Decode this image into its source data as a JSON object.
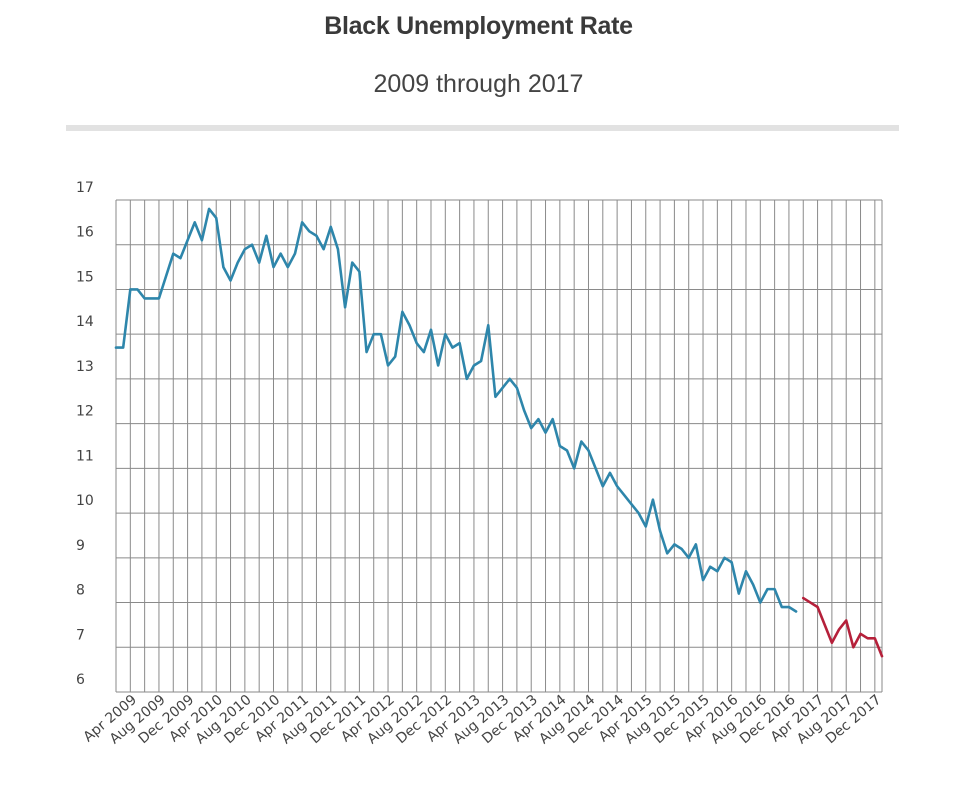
{
  "chart_data": {
    "type": "line",
    "title": "Black Unemployment Rate",
    "subtitle": "2009 through 2017",
    "xlabel": "",
    "ylabel": "",
    "ylim": [
      6,
      17
    ],
    "yticks": [
      "6",
      "7",
      "8",
      "9",
      "10",
      "11",
      "12",
      "13",
      "14",
      "15",
      "16",
      "17"
    ],
    "xtick_labels": [
      "Apr 2009",
      "Aug 2009",
      "Dec 2009",
      "Apr 2010",
      "Aug 2010",
      "Dec 2010",
      "Apr 2011",
      "Aug 2011",
      "Dec 2011",
      "Apr 2012",
      "Aug 2012",
      "Dec 2012",
      "Apr 2013",
      "Aug 2013",
      "Dec 2013",
      "Apr 2014",
      "Aug 2014",
      "Dec 2014",
      "Apr 2015",
      "Aug 2015",
      "Dec 2015",
      "Apr 2016",
      "Aug 2016",
      "Dec 2016",
      "Apr 2017",
      "Aug 2017",
      "Dec 2017"
    ],
    "grid": true,
    "legend": "none",
    "series": [
      {
        "color": "#2e86ab",
        "x": [
          "Jan 2009",
          "Feb 2009",
          "Mar 2009",
          "Apr 2009",
          "May 2009",
          "Jun 2009",
          "Jul 2009",
          "Aug 2009",
          "Sep 2009",
          "Oct 2009",
          "Nov 2009",
          "Dec 2009",
          "Jan 2010",
          "Feb 2010",
          "Mar 2010",
          "Apr 2010",
          "May 2010",
          "Jun 2010",
          "Jul 2010",
          "Aug 2010",
          "Sep 2010",
          "Oct 2010",
          "Nov 2010",
          "Dec 2010",
          "Jan 2011",
          "Feb 2011",
          "Mar 2011",
          "Apr 2011",
          "May 2011",
          "Jun 2011",
          "Jul 2011",
          "Aug 2011",
          "Sep 2011",
          "Oct 2011",
          "Nov 2011",
          "Dec 2011",
          "Jan 2012",
          "Feb 2012",
          "Mar 2012",
          "Apr 2012",
          "May 2012",
          "Jun 2012",
          "Jul 2012",
          "Aug 2012",
          "Sep 2012",
          "Oct 2012",
          "Nov 2012",
          "Dec 2012",
          "Jan 2013",
          "Feb 2013",
          "Mar 2013",
          "Apr 2013",
          "May 2013",
          "Jun 2013",
          "Jul 2013",
          "Aug 2013",
          "Sep 2013",
          "Oct 2013",
          "Nov 2013",
          "Dec 2013",
          "Jan 2014",
          "Feb 2014",
          "Mar 2014",
          "Apr 2014",
          "May 2014",
          "Jun 2014",
          "Jul 2014",
          "Aug 2014",
          "Sep 2014",
          "Oct 2014",
          "Nov 2014",
          "Dec 2014",
          "Jan 2015",
          "Feb 2015",
          "Mar 2015",
          "Apr 2015",
          "May 2015",
          "Jun 2015",
          "Jul 2015",
          "Aug 2015",
          "Sep 2015",
          "Oct 2015",
          "Nov 2015",
          "Dec 2015",
          "Jan 2016",
          "Feb 2016",
          "Mar 2016",
          "Apr 2016",
          "May 2016",
          "Jun 2016",
          "Jul 2016",
          "Aug 2016",
          "Sep 2016",
          "Oct 2016",
          "Nov 2016",
          "Dec 2016"
        ],
        "values": [
          13.7,
          13.7,
          15.0,
          15.0,
          14.8,
          14.8,
          14.8,
          15.3,
          15.8,
          15.7,
          16.1,
          16.5,
          16.1,
          16.8,
          16.6,
          15.5,
          15.2,
          15.6,
          15.9,
          16.0,
          15.6,
          16.2,
          15.5,
          15.8,
          15.5,
          15.8,
          16.5,
          16.3,
          16.2,
          15.9,
          16.4,
          15.9,
          14.6,
          15.6,
          15.4,
          13.6,
          14.0,
          14.0,
          13.3,
          13.5,
          14.5,
          14.2,
          13.8,
          13.6,
          14.1,
          13.3,
          14.0,
          13.7,
          13.8,
          13.0,
          13.3,
          13.4,
          14.2,
          12.6,
          12.8,
          13.0,
          12.8,
          12.3,
          11.9,
          12.1,
          11.8,
          12.1,
          11.5,
          11.4,
          11.0,
          11.6,
          11.4,
          11.0,
          10.6,
          10.9,
          10.6,
          10.4,
          10.2,
          10.0,
          9.7,
          10.3,
          9.6,
          9.1,
          9.3,
          9.2,
          9.0,
          9.3,
          8.5,
          8.8,
          8.7,
          9.0,
          8.9,
          8.2,
          8.7,
          8.4,
          8.0,
          8.3,
          8.3,
          7.9,
          7.9,
          7.8
        ]
      },
      {
        "color": "#b5203a",
        "x": [
          "Jan 2017",
          "Feb 2017",
          "Mar 2017",
          "Apr 2017",
          "May 2017",
          "Jun 2017",
          "Jul 2017",
          "Aug 2017",
          "Sep 2017",
          "Oct 2017",
          "Nov 2017",
          "Dec 2017"
        ],
        "values": [
          8.1,
          8.0,
          7.9,
          7.5,
          7.1,
          7.4,
          7.6,
          7.0,
          7.3,
          7.2,
          7.2,
          6.8
        ]
      }
    ]
  }
}
